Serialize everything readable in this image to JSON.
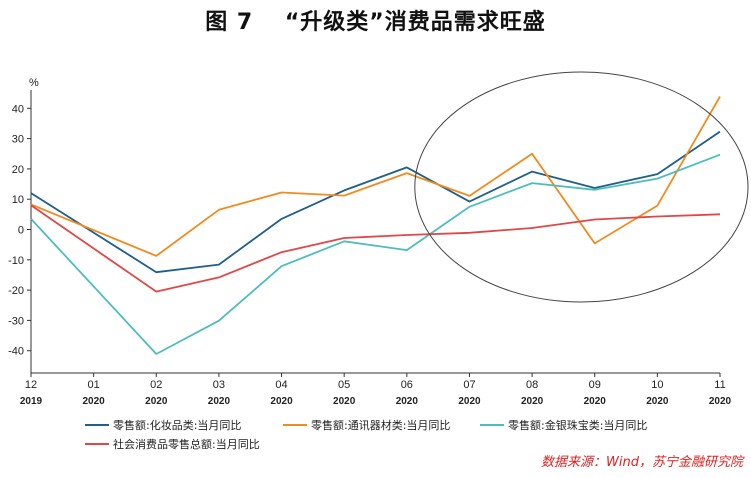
{
  "title": "图 7　 “升级类”消费品需求旺盛",
  "source": "数据来源：Wind，苏宁金融研究院",
  "chart_data": {
    "type": "line",
    "ylabel": "%",
    "ylim": [
      -45,
      48
    ],
    "yticks": [
      40,
      30,
      20,
      10,
      0,
      -10,
      -20,
      -30,
      -40
    ],
    "categories": [
      "12",
      "01",
      "02",
      "03",
      "04",
      "05",
      "06",
      "07",
      "08",
      "09",
      "10",
      "11"
    ],
    "years": [
      "2019",
      "2020",
      "2020",
      "2020",
      "2020",
      "2020",
      "2020",
      "2020",
      "2020",
      "2020",
      "2020",
      "2020"
    ],
    "series": [
      {
        "name": "零售额:化妆品类:当月同比",
        "color": "#1f5f8b",
        "values": [
          12.0,
          null,
          -14.1,
          -11.6,
          3.5,
          12.9,
          20.5,
          9.2,
          19.1,
          13.7,
          18.3,
          32.3
        ]
      },
      {
        "name": "零售额:通讯器材类:当月同比",
        "color": "#f08c1e",
        "values": [
          8.3,
          null,
          -8.7,
          6.5,
          12.2,
          11.2,
          18.6,
          11.1,
          25.0,
          -4.6,
          7.9,
          43.9
        ]
      },
      {
        "name": "零售额:金银珠宝类:当月同比",
        "color": "#4dbdbd",
        "values": [
          3.5,
          null,
          -41.1,
          -30.1,
          -12.1,
          -3.9,
          -6.8,
          7.5,
          15.3,
          13.1,
          16.8,
          24.7
        ]
      },
      {
        "name": "社会消费品零售总额:当月同比",
        "color": "#e04848",
        "values": [
          8.0,
          null,
          -20.5,
          -15.8,
          -7.5,
          -2.8,
          -1.8,
          -1.1,
          0.5,
          3.3,
          4.3,
          5.0
        ]
      }
    ],
    "annotation": "ellipse highlighting 07–11 2020"
  }
}
